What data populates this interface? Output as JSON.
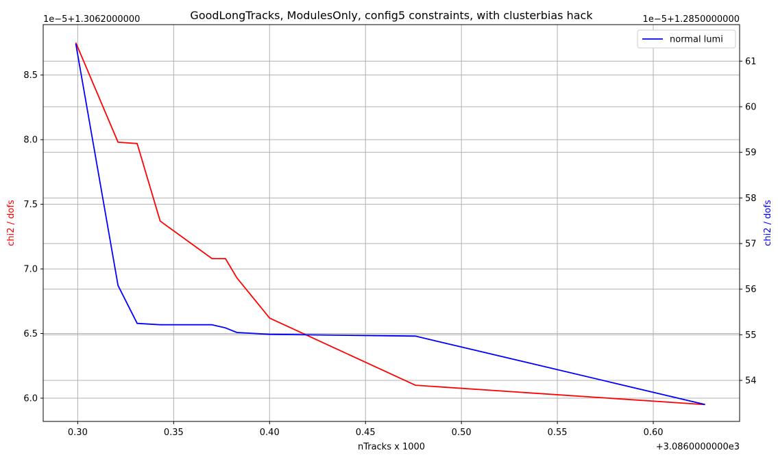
{
  "chart_data": {
    "type": "line",
    "title": "GoodLongTracks, ModulesOnly, config5 constraints, with clusterbias hack",
    "xlabel": "nTracks x 1000",
    "x_offset_label": "+3.0860000000e3",
    "xlim": [
      0.282,
      0.645
    ],
    "x_ticks": [
      {
        "value": 0.3,
        "label": "0.30"
      },
      {
        "value": 0.35,
        "label": "0.35"
      },
      {
        "value": 0.4,
        "label": "0.40"
      },
      {
        "value": 0.45,
        "label": "0.45"
      },
      {
        "value": 0.5,
        "label": "0.50"
      },
      {
        "value": 0.55,
        "label": "0.55"
      },
      {
        "value": 0.6,
        "label": "0.60"
      }
    ],
    "y_left": {
      "label": "chi2 / dofs",
      "color": "#ff0000",
      "offset_label": "1e−5+1.3062000000",
      "lim": [
        5.82,
        8.89
      ],
      "ticks": [
        {
          "value": 6.0,
          "label": "6.0"
        },
        {
          "value": 6.5,
          "label": "6.5"
        },
        {
          "value": 7.0,
          "label": "7.0"
        },
        {
          "value": 7.5,
          "label": "7.5"
        },
        {
          "value": 8.0,
          "label": "8.0"
        },
        {
          "value": 8.5,
          "label": "8.5"
        }
      ]
    },
    "y_right": {
      "label": "chi2 / dofs",
      "color": "#0000ff",
      "offset_label": "1e−5+1.2850000000",
      "lim": [
        53.1,
        61.8
      ],
      "ticks": [
        {
          "value": 54,
          "label": "54"
        },
        {
          "value": 55,
          "label": "55"
        },
        {
          "value": 56,
          "label": "56"
        },
        {
          "value": 57,
          "label": "57"
        },
        {
          "value": 58,
          "label": "58"
        },
        {
          "value": 59,
          "label": "59"
        },
        {
          "value": 60,
          "label": "60"
        },
        {
          "value": 61,
          "label": "61"
        }
      ]
    },
    "grid": true,
    "legend": {
      "position": "top-right",
      "entries": [
        "normal lumi"
      ]
    },
    "series": [
      {
        "axis": "left",
        "color": "#ff0000",
        "x": [
          0.299,
          0.321,
          0.331,
          0.343,
          0.37,
          0.377,
          0.383,
          0.4,
          0.476,
          0.627
        ],
        "y": [
          8.75,
          7.98,
          7.97,
          7.37,
          7.08,
          7.08,
          6.93,
          6.62,
          6.1,
          5.95
        ]
      },
      {
        "axis": "right",
        "name": "normal lumi",
        "color": "#0000ff",
        "x": [
          0.299,
          0.321,
          0.331,
          0.343,
          0.37,
          0.377,
          0.383,
          0.4,
          0.476,
          0.627
        ],
        "y": [
          61.38,
          56.08,
          55.25,
          55.22,
          55.22,
          55.15,
          55.05,
          55.01,
          54.97,
          53.47
        ]
      }
    ]
  }
}
